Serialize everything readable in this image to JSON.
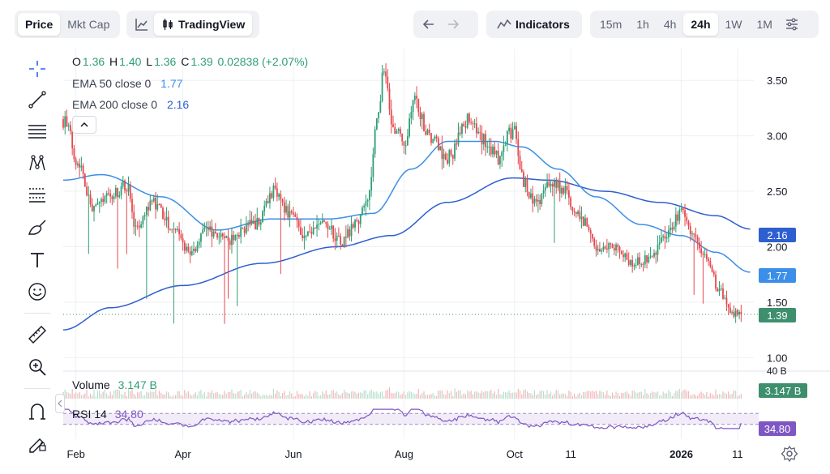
{
  "toolbar": {
    "chart_mode": {
      "price": "Price",
      "mkt_cap": "Mkt Cap"
    },
    "tradingview_label": "TradingView",
    "indicators_label": "Indicators",
    "timeframes": [
      "15m",
      "1h",
      "4h",
      "24h",
      "1W",
      "1M"
    ],
    "active_timeframe": "24h"
  },
  "legend": {
    "ohlc": {
      "o_label": "O",
      "o": "1.36",
      "h_label": "H",
      "h": "1.40",
      "l_label": "L",
      "l": "1.36",
      "c_label": "C",
      "c": "1.39",
      "change": "0.02838 (+2.07%)"
    },
    "ema50": {
      "label": "EMA 50 close 0",
      "value": "1.77"
    },
    "ema200": {
      "label": "EMA 200 close 0",
      "value": "2.16"
    }
  },
  "volume_legend": {
    "label": "Volume",
    "value": "3.147 B"
  },
  "rsi_legend": {
    "label": "RSI 14",
    "value": "34.80"
  },
  "price_tags": {
    "ema200": "2.16",
    "ema50": "1.77",
    "last": "1.39",
    "volume": "3.147 B",
    "rsi": "34.80",
    "volume_axis": "40 B"
  },
  "colors": {
    "up": "#2f9e74",
    "down": "#e5484d",
    "ema50": "#3b8fe8",
    "ema200": "#2d5fd0",
    "rsi": "#7e57c2",
    "last": "#3d8f6d"
  },
  "chart_data": {
    "type": "candlestick",
    "y_ticks": [
      1.0,
      1.5,
      2.0,
      2.5,
      3.0,
      3.5
    ],
    "y_tick_labels": [
      "1.00",
      "1.50",
      "2.00",
      "2.50",
      "3.00",
      "3.50"
    ],
    "ylim": [
      0.9,
      3.75
    ],
    "x_tick_labels": [
      "Feb",
      "Apr",
      "Jun",
      "Aug",
      "Oct",
      "11",
      "2026",
      "11"
    ],
    "x_tick_dates": [
      "2025-02-01",
      "2025-04-01",
      "2025-06-01",
      "2025-08-01",
      "2025-10-01",
      "2025-11-01",
      "2026-01-01",
      "2026-02-01"
    ],
    "x_range": [
      "2025-01-25",
      "2026-02-10"
    ],
    "close_keypoints": [
      [
        "2025-01-25",
        3.15
      ],
      [
        "2025-02-03",
        2.75
      ],
      [
        "2025-02-10",
        2.35
      ],
      [
        "2025-02-20",
        2.45
      ],
      [
        "2025-03-01",
        2.55
      ],
      [
        "2025-03-06",
        2.15
      ],
      [
        "2025-03-15",
        2.4
      ],
      [
        "2025-03-25",
        2.2
      ],
      [
        "2025-04-05",
        1.95
      ],
      [
        "2025-04-15",
        2.15
      ],
      [
        "2025-04-25",
        2.05
      ],
      [
        "2025-05-10",
        2.2
      ],
      [
        "2025-05-22",
        2.5
      ],
      [
        "2025-05-30",
        2.3
      ],
      [
        "2025-06-08",
        2.1
      ],
      [
        "2025-06-18",
        2.2
      ],
      [
        "2025-06-28",
        2.05
      ],
      [
        "2025-07-05",
        2.2
      ],
      [
        "2025-07-12",
        2.45
      ],
      [
        "2025-07-18",
        3.2
      ],
      [
        "2025-07-21",
        3.6
      ],
      [
        "2025-07-26",
        3.1
      ],
      [
        "2025-08-01",
        2.9
      ],
      [
        "2025-08-06",
        3.3
      ],
      [
        "2025-08-15",
        3.0
      ],
      [
        "2025-08-25",
        2.8
      ],
      [
        "2025-09-05",
        3.15
      ],
      [
        "2025-09-15",
        2.95
      ],
      [
        "2025-09-22",
        2.8
      ],
      [
        "2025-09-30",
        3.05
      ],
      [
        "2025-10-06",
        2.6
      ],
      [
        "2025-10-12",
        2.4
      ],
      [
        "2025-10-22",
        2.6
      ],
      [
        "2025-10-28",
        2.5
      ],
      [
        "2025-11-03",
        2.35
      ],
      [
        "2025-11-10",
        2.2
      ],
      [
        "2025-11-17",
        1.95
      ],
      [
        "2025-11-25",
        2.0
      ],
      [
        "2025-12-05",
        1.85
      ],
      [
        "2025-12-15",
        1.9
      ],
      [
        "2025-12-22",
        2.05
      ],
      [
        "2026-01-01",
        2.3
      ],
      [
        "2026-01-08",
        2.1
      ],
      [
        "2026-01-15",
        1.9
      ],
      [
        "2026-01-22",
        1.6
      ],
      [
        "2026-01-29",
        1.4
      ],
      [
        "2026-02-03",
        1.39
      ]
    ],
    "ema50_keypoints": [
      [
        "2025-01-25",
        2.6
      ],
      [
        "2025-02-15",
        2.65
      ],
      [
        "2025-03-20",
        2.45
      ],
      [
        "2025-04-20",
        2.15
      ],
      [
        "2025-05-20",
        2.25
      ],
      [
        "2025-06-20",
        2.25
      ],
      [
        "2025-07-15",
        2.3
      ],
      [
        "2025-08-05",
        2.7
      ],
      [
        "2025-08-25",
        2.95
      ],
      [
        "2025-09-20",
        2.95
      ],
      [
        "2025-10-05",
        2.9
      ],
      [
        "2025-10-25",
        2.7
      ],
      [
        "2025-11-15",
        2.45
      ],
      [
        "2025-12-10",
        2.2
      ],
      [
        "2026-01-01",
        2.1
      ],
      [
        "2026-01-20",
        1.95
      ],
      [
        "2026-02-08",
        1.77
      ]
    ],
    "ema200_keypoints": [
      [
        "2025-01-25",
        1.25
      ],
      [
        "2025-02-20",
        1.45
      ],
      [
        "2025-04-01",
        1.65
      ],
      [
        "2025-05-15",
        1.85
      ],
      [
        "2025-06-25",
        2.0
      ],
      [
        "2025-07-25",
        2.1
      ],
      [
        "2025-08-25",
        2.4
      ],
      [
        "2025-09-30",
        2.62
      ],
      [
        "2025-10-20",
        2.6
      ],
      [
        "2025-11-20",
        2.5
      ],
      [
        "2025-12-20",
        2.4
      ],
      [
        "2026-01-20",
        2.28
      ],
      [
        "2026-02-08",
        2.16
      ]
    ],
    "last_price": 1.39,
    "volume_axis_label": "40 B",
    "volume_last": 3.147,
    "rsi_last": 34.8,
    "rsi_band": [
      30,
      70
    ]
  }
}
